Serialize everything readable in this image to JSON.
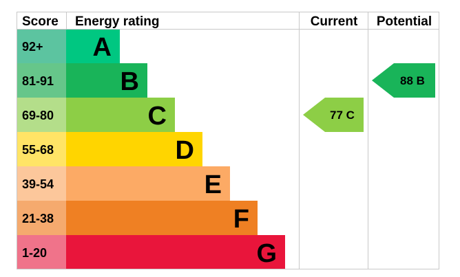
{
  "headers": {
    "score": "Score",
    "energy_rating": "Energy rating",
    "current": "Current",
    "potential": "Potential"
  },
  "chart_data": {
    "type": "bar",
    "bands": [
      {
        "score": "92+",
        "letter": "A",
        "color": "#00c781",
        "score_color": "#5cc4a0"
      },
      {
        "score": "81-91",
        "letter": "B",
        "color": "#19b459",
        "score_color": "#66c68a"
      },
      {
        "score": "69-80",
        "letter": "C",
        "color": "#8dce46",
        "score_color": "#b4de8a"
      },
      {
        "score": "55-68",
        "letter": "D",
        "color": "#ffd500",
        "score_color": "#ffe466"
      },
      {
        "score": "39-54",
        "letter": "E",
        "color": "#fcaa65",
        "score_color": "#fcc79b"
      },
      {
        "score": "21-38",
        "letter": "F",
        "color": "#ef8023",
        "score_color": "#f5aa6e"
      },
      {
        "score": "1-20",
        "letter": "G",
        "color": "#e9153b",
        "score_color": "#f0738a"
      }
    ],
    "current": {
      "value": 77,
      "letter": "C",
      "color": "#8dce46"
    },
    "potential": {
      "value": 88,
      "letter": "B",
      "color": "#19b459"
    }
  }
}
